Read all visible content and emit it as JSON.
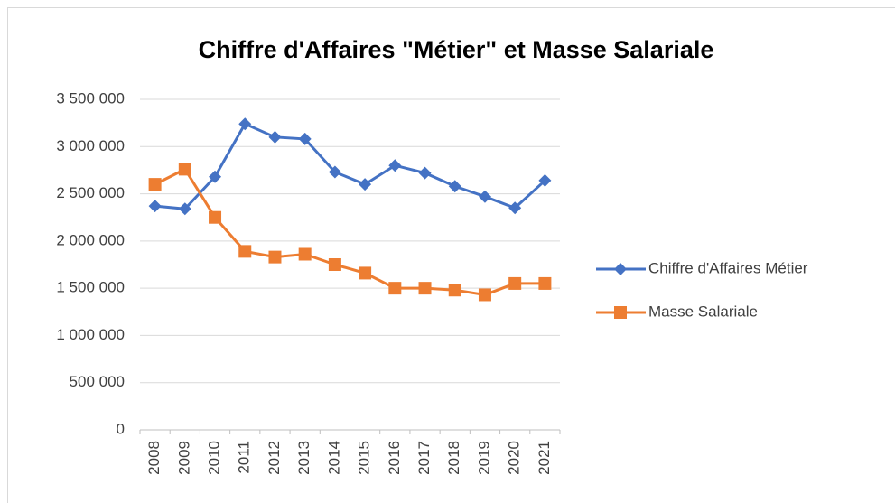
{
  "chart_data": {
    "type": "line",
    "title": "Chiffre d'Affaires \"Métier\" et Masse Salariale",
    "categories": [
      "2008",
      "2009",
      "2010",
      "2011",
      "2012",
      "2013",
      "2014",
      "2015",
      "2016",
      "2017",
      "2018",
      "2019",
      "2020",
      "2021"
    ],
    "series": [
      {
        "name": "Chiffre d'Affaires Métier",
        "color": "#4472c4",
        "marker": "diamond",
        "values": [
          2370000,
          2340000,
          2680000,
          3240000,
          3100000,
          3080000,
          2730000,
          2600000,
          2800000,
          2720000,
          2580000,
          2470000,
          2350000,
          2640000
        ]
      },
      {
        "name": "Masse Salariale",
        "color": "#ed7d31",
        "marker": "square",
        "values": [
          2600000,
          2760000,
          2250000,
          1890000,
          1830000,
          1860000,
          1750000,
          1660000,
          1500000,
          1500000,
          1480000,
          1430000,
          1550000,
          1550000
        ]
      }
    ],
    "ylim": [
      0,
      3500000
    ],
    "yticks": [
      0,
      {
        "value": 500000,
        "label": "500 000"
      },
      {
        "value": 1000000,
        "label": "1 000 000"
      },
      {
        "value": 1500000,
        "label": "1 500 000"
      },
      {
        "value": 2000000,
        "label": "2 000 000"
      },
      {
        "value": 2500000,
        "label": "2 500 000"
      },
      {
        "value": 3000000,
        "label": "3 000 000"
      },
      {
        "value": 3500000,
        "label": "3 500 000"
      }
    ],
    "grid": true,
    "legend": "right"
  }
}
